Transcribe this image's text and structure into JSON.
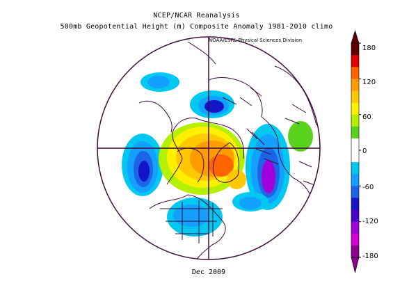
{
  "title_line1": "NCEP/NCAR Reanalysis",
  "title_line2": "500mb Geopotential Height (m) Composite Anomaly 1981-2010 climo",
  "credit": "NOAA/ESRL Physical Sciences Division",
  "date": "Dec 2009",
  "colorbar": {
    "ticks": [
      "180",
      "120",
      "60",
      "0",
      "-60",
      "-120",
      "-180"
    ],
    "colors": [
      "#5c0000",
      "#e10000",
      "#ff6400",
      "#ff9c00",
      "#ffc800",
      "#fff000",
      "#b4f000",
      "#5ad21e",
      "#ffffff",
      "#ffffff",
      "#00c8f0",
      "#14a0ff",
      "#1e64e6",
      "#1414c8",
      "#4b00c8",
      "#a000dc",
      "#d200d2",
      "#8c008c"
    ]
  },
  "map": {
    "projection": "north-polar-stereographic",
    "variable": "500mb geopotential height anomaly",
    "units": "m"
  }
}
